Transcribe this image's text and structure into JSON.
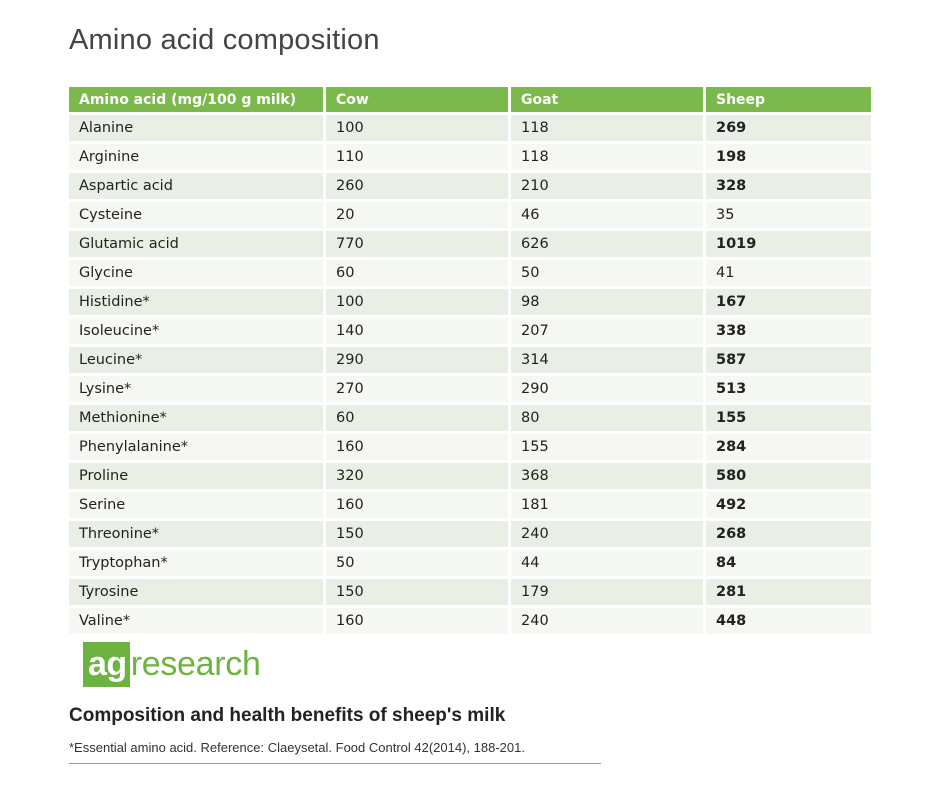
{
  "title": "Amino acid composition",
  "table": {
    "headers": [
      "Amino acid (mg/100 g milk)",
      "Cow",
      "Goat",
      "Sheep"
    ],
    "rows": [
      {
        "amino": "Alanine",
        "cow": "100",
        "goat": "118",
        "sheep": "269"
      },
      {
        "amino": "Arginine",
        "cow": "110",
        "goat": "118",
        "sheep": "198"
      },
      {
        "amino": "Aspartic acid",
        "cow": "260",
        "goat": "210",
        "sheep": "328"
      },
      {
        "amino": "Cysteine",
        "cow": "20",
        "goat": "46",
        "sheep": "35"
      },
      {
        "amino": "Glutamic acid",
        "cow": "770",
        "goat": "626",
        "sheep": "1019"
      },
      {
        "amino": "Glycine",
        "cow": "60",
        "goat": "50",
        "sheep": "41"
      },
      {
        "amino": "Histidine*",
        "cow": "100",
        "goat": "98",
        "sheep": "167"
      },
      {
        "amino": "Isoleucine*",
        "cow": "140",
        "goat": "207",
        "sheep": "338"
      },
      {
        "amino": "Leucine*",
        "cow": "290",
        "goat": "314",
        "sheep": "587"
      },
      {
        "amino": "Lysine*",
        "cow": "270",
        "goat": "290",
        "sheep": "513"
      },
      {
        "amino": "Methionine*",
        "cow": "60",
        "goat": "80",
        "sheep": "155"
      },
      {
        "amino": "Phenylalanine*",
        "cow": "160",
        "goat": "155",
        "sheep": "284"
      },
      {
        "amino": "Proline",
        "cow": "320",
        "goat": "368",
        "sheep": "580"
      },
      {
        "amino": "Serine",
        "cow": "160",
        "goat": "181",
        "sheep": "492"
      },
      {
        "amino": "Threonine*",
        "cow": "150",
        "goat": "240",
        "sheep": "268"
      },
      {
        "amino": "Tryptophan*",
        "cow": "50",
        "goat": "44",
        "sheep": "84"
      },
      {
        "amino": "Tyrosine",
        "cow": "150",
        "goat": "179",
        "sheep": "281"
      },
      {
        "amino": "Valine*",
        "cow": "160",
        "goat": "240",
        "sheep": "448"
      }
    ]
  },
  "logo": {
    "ag": "ag",
    "rest": "research",
    "color": "#6cb33f"
  },
  "subtitle": "Composition and health benefits of sheep's milk",
  "footnote": "*Essential amino acid. Reference: Claeysetal. Food Control 42(2014), 188-201.",
  "colors": {
    "header_bg": "#7cb94c",
    "row_odd": "#e9efe4",
    "row_even": "#f5f7f3"
  }
}
